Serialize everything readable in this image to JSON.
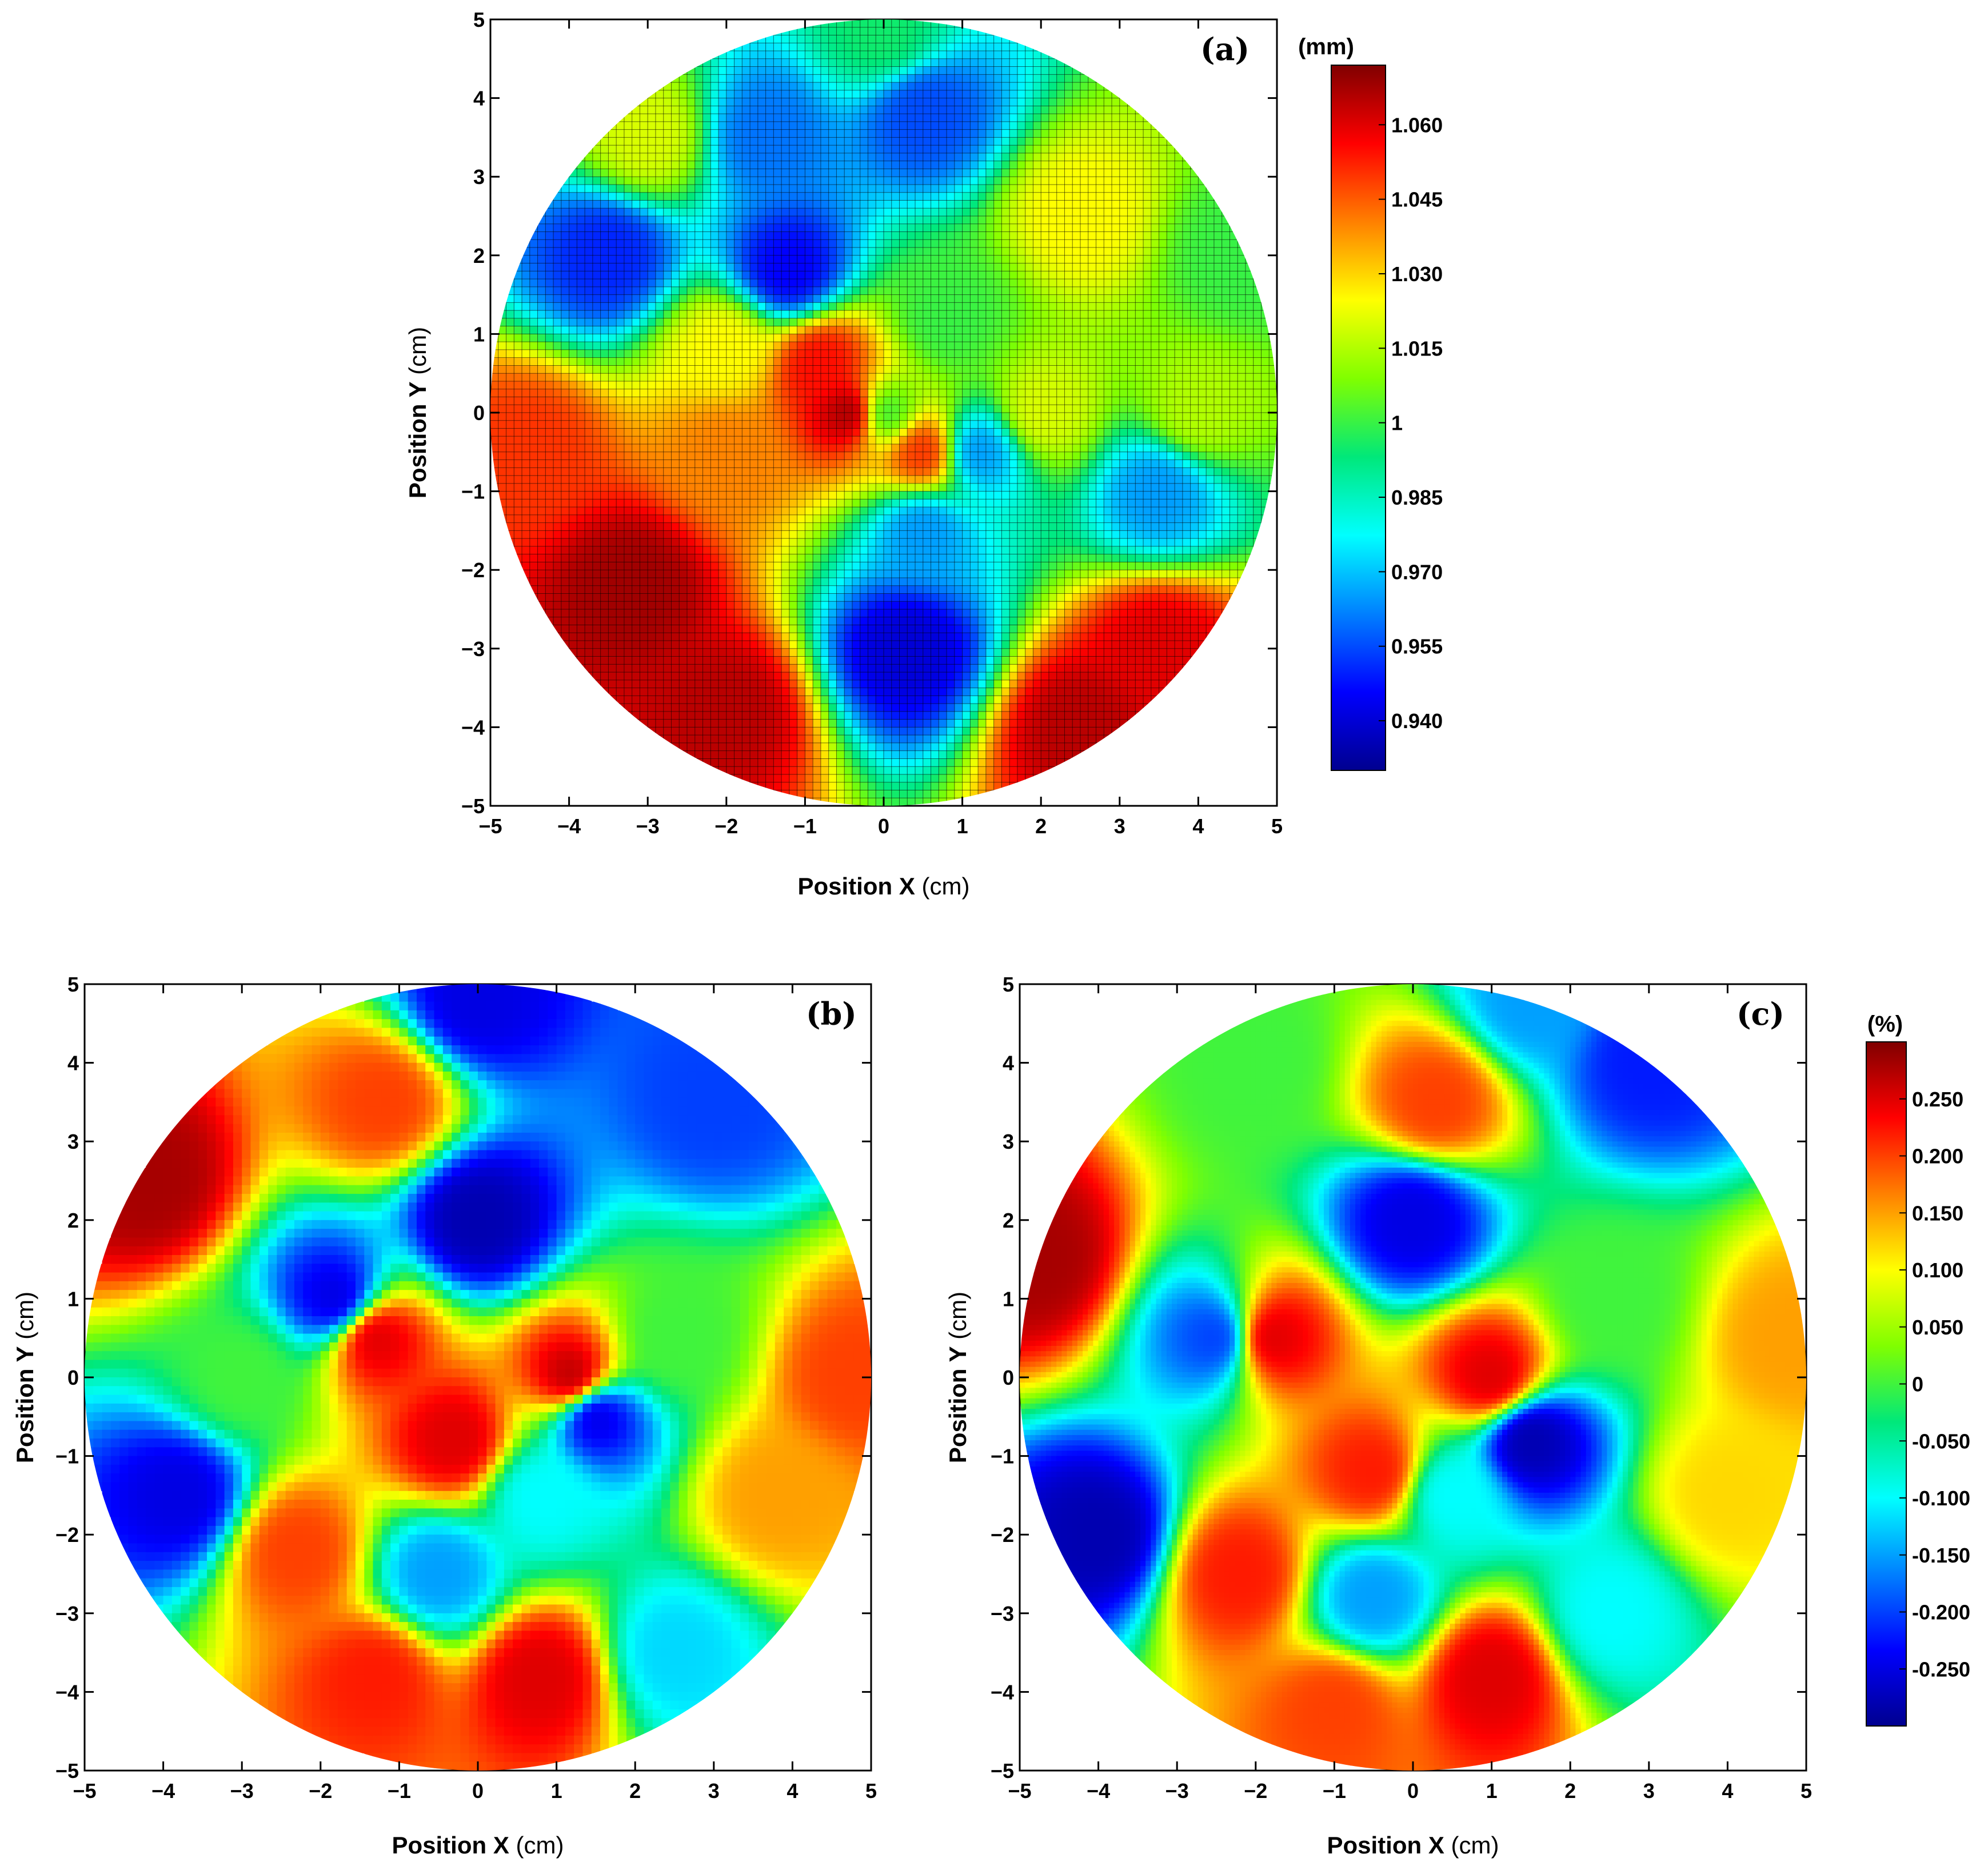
{
  "colors": {
    "colormap": [
      "#00008f",
      "#0000ff",
      "#0080ff",
      "#00ffff",
      "#00e87a",
      "#80ff00",
      "#ffff00",
      "#ff8000",
      "#ff0000",
      "#800000"
    ],
    "grid_line": "#000000"
  },
  "chart_data": [
    {
      "id": "a",
      "type": "heatmap",
      "panel_label": "(a)",
      "xlabel_bold": "Position X",
      "xlabel_unit": " (cm)",
      "ylabel_bold": "Position Y",
      "ylabel_unit": " (cm)",
      "xlim": [
        -5,
        5
      ],
      "ylim": [
        -5,
        5
      ],
      "xticks": [
        "−5",
        "−4",
        "−3",
        "−2",
        "−1",
        "0",
        "1",
        "2",
        "3",
        "4",
        "5"
      ],
      "yticks": [
        "5",
        "4",
        "3",
        "2",
        "1",
        "0",
        "−1",
        "−2",
        "−3",
        "−4",
        "−5"
      ],
      "grid": true,
      "mask": "circle radius 5 cm",
      "colorbar": {
        "unit": "(mm)",
        "range": [
          0.93,
          1.072
        ],
        "tick_values": [
          1.06,
          1.045,
          1.03,
          1.015,
          1.0,
          0.985,
          0.97,
          0.955,
          0.94
        ],
        "tick_labels": [
          "1.060",
          "1.045",
          "1.030",
          "1.015",
          "1",
          "0.985",
          "0.970",
          "0.955",
          "0.940"
        ]
      },
      "field_points": [
        {
          "x": 0,
          "y": 0,
          "v": 1.0
        },
        {
          "x": -0.4,
          "y": 0,
          "v": 1.068
        },
        {
          "x": -0.8,
          "y": 0.6,
          "v": 1.055
        },
        {
          "x": 0.5,
          "y": -0.5,
          "v": 1.05
        },
        {
          "x": -3.2,
          "y": -2.2,
          "v": 1.068
        },
        {
          "x": -4.5,
          "y": -0.5,
          "v": 1.05
        },
        {
          "x": -2.0,
          "y": -3.8,
          "v": 1.065
        },
        {
          "x": 2.5,
          "y": -4.0,
          "v": 1.065
        },
        {
          "x": 3.5,
          "y": -3.0,
          "v": 1.06
        },
        {
          "x": -2.0,
          "y": -0.5,
          "v": 1.04
        },
        {
          "x": -3.5,
          "y": 2.0,
          "v": 0.95
        },
        {
          "x": -1.2,
          "y": 1.8,
          "v": 0.945
        },
        {
          "x": 0.5,
          "y": 3.8,
          "v": 0.955
        },
        {
          "x": -1.5,
          "y": 3.5,
          "v": 0.96
        },
        {
          "x": 0.3,
          "y": -3.0,
          "v": 0.94
        },
        {
          "x": 0.5,
          "y": -1.5,
          "v": 0.965
        },
        {
          "x": 1.2,
          "y": -0.5,
          "v": 0.965
        },
        {
          "x": 0.8,
          "y": 1.2,
          "v": 1.0
        },
        {
          "x": 2.5,
          "y": 2.5,
          "v": 1.025
        },
        {
          "x": 4.0,
          "y": 0.0,
          "v": 1.015
        },
        {
          "x": 3.5,
          "y": -1.0,
          "v": 0.965
        },
        {
          "x": 2.0,
          "y": 0.0,
          "v": 1.02
        },
        {
          "x": 0.0,
          "y": 4.8,
          "v": 0.995
        },
        {
          "x": -3.0,
          "y": 3.5,
          "v": 1.02
        },
        {
          "x": -2.0,
          "y": 0.8,
          "v": 1.025
        },
        {
          "x": 4.5,
          "y": 2.0,
          "v": 1.0
        }
      ]
    },
    {
      "id": "b",
      "type": "heatmap",
      "panel_label": "(b)",
      "xlabel_bold": "Position X",
      "xlabel_unit": " (cm)",
      "ylabel_bold": "Position Y",
      "ylabel_unit": " (cm)",
      "xlim": [
        -5,
        5
      ],
      "ylim": [
        -5,
        5
      ],
      "xticks": [
        "−5",
        "−4",
        "−3",
        "−2",
        "−1",
        "0",
        "1",
        "2",
        "3",
        "4",
        "5"
      ],
      "yticks": [
        "5",
        "4",
        "3",
        "2",
        "1",
        "0",
        "−1",
        "−2",
        "−3",
        "−4",
        "−5"
      ],
      "grid": false,
      "pixelated": true,
      "mask": "circle radius 5 cm",
      "colorbar_range": [
        -0.3,
        0.3
      ],
      "field_points": [
        {
          "x": -4.2,
          "y": 2.5,
          "v": 0.28
        },
        {
          "x": -1.2,
          "y": 3.5,
          "v": 0.2
        },
        {
          "x": -1.3,
          "y": 0.5,
          "v": 0.25
        },
        {
          "x": 1.2,
          "y": 0.0,
          "v": 0.27
        },
        {
          "x": -0.3,
          "y": -0.8,
          "v": 0.25
        },
        {
          "x": -2.3,
          "y": -2.2,
          "v": 0.2
        },
        {
          "x": -1.3,
          "y": -3.8,
          "v": 0.22
        },
        {
          "x": 0.8,
          "y": -3.8,
          "v": 0.25
        },
        {
          "x": 3.8,
          "y": -1.5,
          "v": 0.15
        },
        {
          "x": -1.8,
          "y": 1.0,
          "v": -0.25
        },
        {
          "x": 0.0,
          "y": 2.0,
          "v": -0.28
        },
        {
          "x": 0.0,
          "y": 4.8,
          "v": -0.25
        },
        {
          "x": 3.0,
          "y": 3.5,
          "v": -0.2
        },
        {
          "x": -3.8,
          "y": -1.5,
          "v": -0.25
        },
        {
          "x": 1.5,
          "y": -0.5,
          "v": -0.25
        },
        {
          "x": 0.8,
          "y": -1.5,
          "v": -0.1
        },
        {
          "x": 2.5,
          "y": 0.5,
          "v": 0.0
        },
        {
          "x": -0.5,
          "y": -2.5,
          "v": -0.15
        },
        {
          "x": 2.5,
          "y": -3.5,
          "v": -0.12
        },
        {
          "x": 4.8,
          "y": 0.0,
          "v": 0.2
        },
        {
          "x": -3.0,
          "y": 0.0,
          "v": 0.0
        }
      ]
    },
    {
      "id": "c",
      "type": "heatmap",
      "panel_label": "(c)",
      "xlabel_bold": "Position X",
      "xlabel_unit": " (cm)",
      "ylabel_bold": "Position Y",
      "ylabel_unit": " (cm)",
      "xlim": [
        -5,
        5
      ],
      "ylim": [
        -5,
        5
      ],
      "xticks": [
        "−5",
        "−4",
        "−3",
        "−2",
        "−1",
        "0",
        "1",
        "2",
        "3",
        "4",
        "5"
      ],
      "yticks": [
        "5",
        "4",
        "3",
        "2",
        "1",
        "0",
        "−1",
        "−2",
        "−3",
        "−4",
        "−5"
      ],
      "grid": false,
      "pixelated": false,
      "mask": "circle radius 5 cm",
      "colorbar": {
        "unit": "(%)",
        "range": [
          -0.3,
          0.3
        ],
        "tick_values": [
          0.25,
          0.2,
          0.15,
          0.1,
          0.05,
          0,
          -0.05,
          -0.1,
          -0.15,
          -0.2,
          -0.25
        ],
        "tick_labels": [
          "0.250",
          "0.200",
          "0.150",
          "0.100",
          "0.050",
          "0",
          "-0.050",
          "-0.100",
          "-0.150",
          "-0.200",
          "-0.250"
        ]
      },
      "field_points": [
        {
          "x": -4.8,
          "y": 1.5,
          "v": 0.28
        },
        {
          "x": 0.3,
          "y": 3.5,
          "v": 0.2
        },
        {
          "x": -1.8,
          "y": 0.5,
          "v": 0.25
        },
        {
          "x": 1.0,
          "y": 0.0,
          "v": 0.25
        },
        {
          "x": -0.5,
          "y": -1.2,
          "v": 0.22
        },
        {
          "x": -2.2,
          "y": -2.5,
          "v": 0.22
        },
        {
          "x": -1.0,
          "y": -4.2,
          "v": 0.2
        },
        {
          "x": 1.0,
          "y": -3.8,
          "v": 0.25
        },
        {
          "x": 4.0,
          "y": -1.5,
          "v": 0.12
        },
        {
          "x": 4.8,
          "y": 0.5,
          "v": 0.15
        },
        {
          "x": -2.5,
          "y": 0.5,
          "v": -0.2
        },
        {
          "x": 0.0,
          "y": 2.0,
          "v": -0.25
        },
        {
          "x": 3.0,
          "y": 4.0,
          "v": -0.22
        },
        {
          "x": -4.0,
          "y": -2.0,
          "v": -0.28
        },
        {
          "x": 1.5,
          "y": -0.8,
          "v": -0.28
        },
        {
          "x": 0.5,
          "y": -1.5,
          "v": -0.1
        },
        {
          "x": 2.5,
          "y": 1.0,
          "v": 0.0
        },
        {
          "x": -0.5,
          "y": -2.8,
          "v": -0.15
        },
        {
          "x": 2.5,
          "y": -3.0,
          "v": -0.1
        },
        {
          "x": -2.0,
          "y": 4.0,
          "v": 0.0
        },
        {
          "x": 1.5,
          "y": 4.8,
          "v": -0.15
        }
      ]
    }
  ]
}
